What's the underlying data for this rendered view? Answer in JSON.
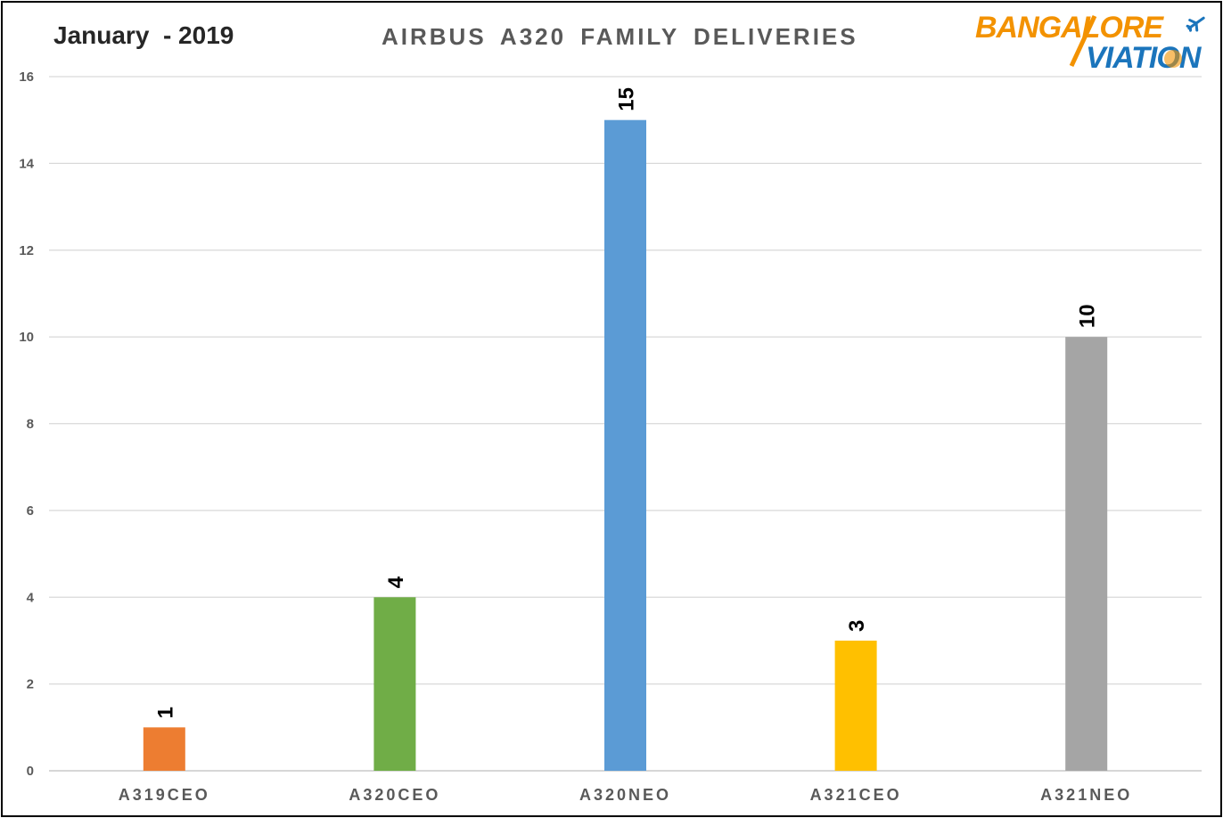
{
  "header": {
    "period": "January  - 2019",
    "title": "AIRBUS A320 FAMILY DELIVERIES"
  },
  "logo": {
    "line1": "BANGALORE",
    "line2": "VIATION",
    "primary_color": "#F39200",
    "secondary_color": "#1B75BC",
    "icon": "airplane-icon"
  },
  "chart_data": {
    "type": "bar",
    "title": "AIRBUS A320 FAMILY DELIVERIES",
    "categories": [
      "A319CEO",
      "A320CEO",
      "A320NEO",
      "A321CEO",
      "A321NEO"
    ],
    "values": [
      1,
      4,
      15,
      3,
      10
    ],
    "data_labels": [
      "1",
      "4",
      "15",
      "3",
      "10"
    ],
    "colors": [
      "#ED7D31",
      "#70AD47",
      "#5B9BD5",
      "#FFC000",
      "#A5A5A5"
    ],
    "ylim": [
      0,
      16
    ],
    "yticks": [
      0,
      2,
      4,
      6,
      8,
      10,
      12,
      14,
      16
    ],
    "xlabel": "",
    "ylabel": "",
    "grid": true,
    "legend": "none"
  }
}
